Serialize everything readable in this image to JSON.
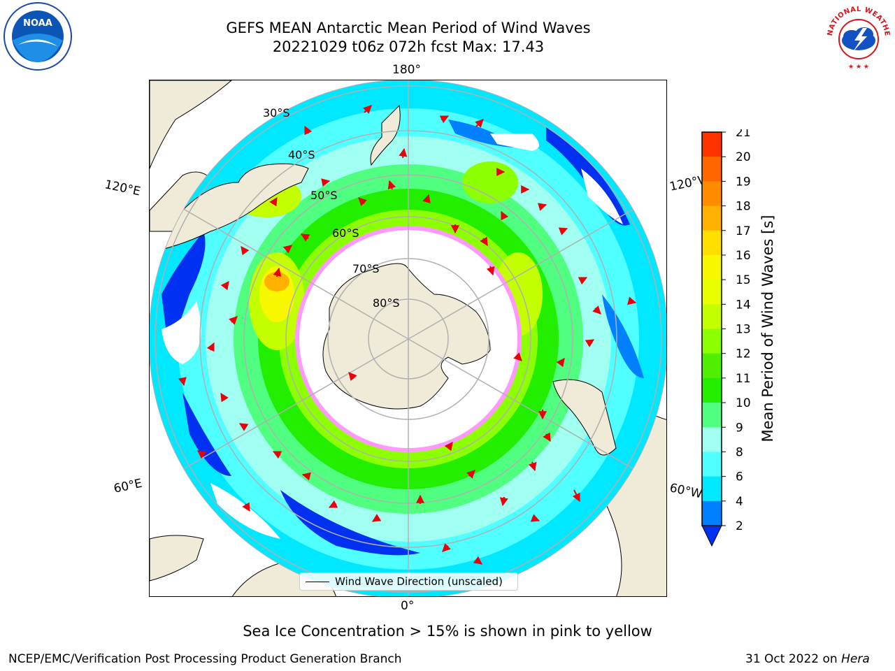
{
  "title": {
    "line1": "GEFS MEAN Antarctic Mean Period of Wind Waves",
    "line2": "20221029 t06z 072h fcst   Max: 17.43"
  },
  "logos": {
    "noaa_icon": "noaa-logo",
    "noaa_text": "NOAA",
    "nws_icon": "nws-logo",
    "nws_text": "NATIONAL WEATHER SERVICE"
  },
  "map": {
    "longitude_labels": {
      "top": "180°",
      "left_upper": "120°E",
      "right_upper": "120°W",
      "left_lower": "60°E",
      "right_lower": "60°W",
      "bottom": "0°"
    },
    "latitude_labels": [
      "30°S",
      "40°S",
      "50°S",
      "60°S",
      "70°S",
      "80°S"
    ],
    "colors": {
      "land": "#efebd8",
      "ice": "#ffffff",
      "arrows": "#e8000b",
      "grid": "#b0b0b0",
      "ice_edge": "#ff33cc"
    }
  },
  "legend": {
    "label": "Wind Wave Direction (unscaled)"
  },
  "colorbar": {
    "label": "Mean Period of Wind Waves [s]",
    "ticks": [
      "21",
      "20",
      "19",
      "18",
      "17",
      "16",
      "15",
      "14",
      "13",
      "12",
      "11",
      "10",
      "9",
      "8",
      "6",
      "4",
      "2"
    ],
    "colors": [
      "#ff0000",
      "#ff3300",
      "#ff6600",
      "#ff8c00",
      "#ffb000",
      "#ffde00",
      "#f7f700",
      "#e8ff00",
      "#c4ff00",
      "#8cff00",
      "#50ee00",
      "#22ee00",
      "#50ff80",
      "#a0fff0",
      "#50ffff",
      "#00e8ff",
      "#0080ff",
      "#0030f0"
    ]
  },
  "note": "Sea Ice Concentration > 15% is shown in pink to yellow",
  "footer": {
    "left": "NCEP/EMC/Verification Post Processing Product Generation Branch",
    "date": "31 Oct 2022 on ",
    "host": "Hera"
  }
}
